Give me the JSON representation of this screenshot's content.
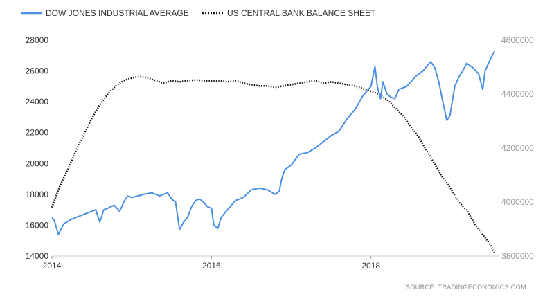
{
  "chart_data": {
    "type": "line",
    "title": "",
    "source": "SOURCE: TRADINGECONOMICS.COM",
    "legend_position": "top-left",
    "grid": false,
    "x_range": [
      2014.0,
      2019.6
    ],
    "x_ticks": [
      "2014",
      "2016",
      "2018"
    ],
    "y_left": {
      "range": [
        14000,
        28000
      ],
      "ticks": [
        "14000",
        "16000",
        "18000",
        "20000",
        "22000",
        "24000",
        "26000",
        "28000"
      ]
    },
    "y_right": {
      "range": [
        3800000,
        4600000
      ],
      "ticks": [
        "3800000",
        "4000000",
        "4200000",
        "4400000",
        "4600000"
      ]
    },
    "series": [
      {
        "name": "DOW JONES INDUSTRIAL AVERAGE",
        "axis": "left",
        "color": "#4a90e2",
        "style": "solid",
        "x": [
          2014.0,
          2014.03,
          2014.08,
          2014.15,
          2014.25,
          2014.35,
          2014.45,
          2014.55,
          2014.6,
          2014.65,
          2014.7,
          2014.78,
          2014.85,
          2014.9,
          2014.95,
          2015.0,
          2015.08,
          2015.15,
          2015.25,
          2015.35,
          2015.45,
          2015.5,
          2015.55,
          2015.6,
          2015.65,
          2015.7,
          2015.75,
          2015.8,
          2015.85,
          2015.9,
          2015.95,
          2016.0,
          2016.03,
          2016.08,
          2016.12,
          2016.2,
          2016.3,
          2016.4,
          2016.5,
          2016.6,
          2016.7,
          2016.8,
          2016.85,
          2016.88,
          2016.92,
          2017.0,
          2017.1,
          2017.2,
          2017.3,
          2017.4,
          2017.5,
          2017.6,
          2017.7,
          2017.8,
          2017.9,
          2018.0,
          2018.05,
          2018.08,
          2018.12,
          2018.15,
          2018.2,
          2018.25,
          2018.3,
          2018.35,
          2018.45,
          2018.55,
          2018.65,
          2018.7,
          2018.75,
          2018.8,
          2018.85,
          2018.9,
          2018.95,
          2018.99,
          2019.05,
          2019.1,
          2019.15,
          2019.2,
          2019.28,
          2019.35,
          2019.4,
          2019.43,
          2019.5,
          2019.55
        ],
        "y": [
          16500,
          16300,
          15400,
          16100,
          16400,
          16600,
          16800,
          17000,
          16200,
          17000,
          17100,
          17300,
          16900,
          17500,
          17900,
          17800,
          17900,
          18000,
          18100,
          17900,
          18100,
          17700,
          17500,
          15700,
          16200,
          16500,
          17200,
          17600,
          17700,
          17500,
          17200,
          17100,
          16000,
          15800,
          16500,
          17000,
          17600,
          17800,
          18300,
          18400,
          18300,
          18000,
          18200,
          19000,
          19600,
          19900,
          20600,
          20700,
          21000,
          21400,
          21800,
          22100,
          22900,
          23500,
          24400,
          25000,
          26300,
          25000,
          24200,
          25300,
          24500,
          24300,
          24200,
          24800,
          25000,
          25600,
          26000,
          26300,
          26600,
          26200,
          25300,
          24000,
          22800,
          23100,
          25000,
          25600,
          26000,
          26500,
          26200,
          25800,
          24800,
          26000,
          26800,
          27300
        ]
      },
      {
        "name": "US CENTRAL BANK BALANCE SHEET",
        "axis": "right",
        "color": "#111111",
        "style": "dotted",
        "x": [
          2014.0,
          2014.05,
          2014.1,
          2014.2,
          2014.3,
          2014.4,
          2014.5,
          2014.6,
          2014.7,
          2014.8,
          2014.9,
          2015.0,
          2015.1,
          2015.2,
          2015.3,
          2015.4,
          2015.5,
          2015.6,
          2015.7,
          2015.8,
          2015.9,
          2016.0,
          2016.1,
          2016.2,
          2016.3,
          2016.4,
          2016.5,
          2016.6,
          2016.7,
          2016.8,
          2016.9,
          2017.0,
          2017.1,
          2017.2,
          2017.3,
          2017.4,
          2017.5,
          2017.6,
          2017.7,
          2017.8,
          2017.9,
          2018.0,
          2018.1,
          2018.2,
          2018.3,
          2018.4,
          2018.5,
          2018.6,
          2018.7,
          2018.8,
          2018.9,
          2019.0,
          2019.1,
          2019.2,
          2019.3,
          2019.4,
          2019.5,
          2019.55
        ],
        "y": [
          3980000,
          4020000,
          4060000,
          4120000,
          4190000,
          4250000,
          4310000,
          4360000,
          4400000,
          4430000,
          4450000,
          4460000,
          4465000,
          4460000,
          4450000,
          4440000,
          4450000,
          4445000,
          4450000,
          4452000,
          4450000,
          4448000,
          4450000,
          4445000,
          4450000,
          4440000,
          4435000,
          4430000,
          4430000,
          4425000,
          4430000,
          4435000,
          4440000,
          4445000,
          4450000,
          4440000,
          4445000,
          4440000,
          4435000,
          4430000,
          4420000,
          4410000,
          4400000,
          4380000,
          4350000,
          4320000,
          4280000,
          4240000,
          4190000,
          4140000,
          4090000,
          4050000,
          4000000,
          3970000,
          3920000,
          3880000,
          3840000,
          3810000
        ]
      }
    ]
  }
}
